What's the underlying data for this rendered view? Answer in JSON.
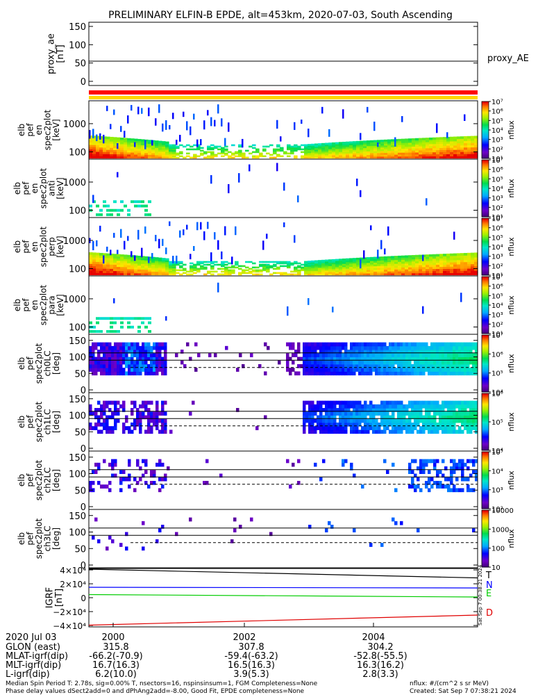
{
  "title": "PRELIMINARY ELFIN-B EPDE, alt=453km, 2020-07-03, South Ascending",
  "colors": {
    "red": "#ff0000",
    "yellow": "#ffd700",
    "blue": "#0000ff",
    "green": "#00cc00",
    "black": "#000000"
  },
  "proxy_panel": {
    "ylabel": "proxy_ae\n[nT]",
    "legend": "proxy_AE",
    "yticks": [
      0,
      50,
      100,
      150
    ],
    "value": 55
  },
  "spectro_panels": [
    {
      "ylabel": "elb\npef\nen\nspec2plot\n[keV]",
      "yticks": [
        "100",
        "1000"
      ],
      "cbar_label": "nflux",
      "cbar_ticks": [
        "10¹",
        "10²",
        "10³",
        "10⁴",
        "10⁵",
        "10⁶",
        "10⁷"
      ],
      "kind": "energy",
      "omni": true
    },
    {
      "ylabel": "elb\npef\nen\nspec2plot\nanti\n[keV]",
      "yticks": [
        "100",
        "1000"
      ],
      "cbar_label": "nflux",
      "cbar_ticks": [
        "10¹",
        "10²",
        "10³",
        "10⁴",
        "10⁵",
        "10⁶",
        "10⁷"
      ],
      "kind": "energy",
      "omni": false
    },
    {
      "ylabel": "elb\npef\nen\nspec2plot\nperp\n[keV]",
      "yticks": [
        "100",
        "1000"
      ],
      "cbar_label": "nflux",
      "cbar_ticks": [
        "10¹",
        "10²",
        "10³",
        "10⁴",
        "10⁵",
        "10⁶",
        "10⁷"
      ],
      "kind": "energy",
      "omni": true
    },
    {
      "ylabel": "elb\npef\nen\nspec2plot\npara\n[keV]",
      "yticks": [
        "100",
        "1000"
      ],
      "cbar_label": "nflux",
      "cbar_ticks": [
        "10¹",
        "10²",
        "10³",
        "10⁴",
        "10⁵",
        "10⁶",
        "10⁷"
      ],
      "kind": "energy",
      "omni": false
    },
    {
      "ylabel": "elb\npef\nspec2plot\nch0LC\n[deg]",
      "yticks": [
        "0",
        "50",
        "100",
        "150"
      ],
      "cbar_label": "nflux",
      "cbar_ticks": [
        "10⁴",
        "10⁵",
        "10⁶",
        "10⁷"
      ],
      "kind": "pitch",
      "level": 3
    },
    {
      "ylabel": "elb\npef\nspec2plot\nch1LC\n[deg]",
      "yticks": [
        "0",
        "50",
        "100",
        "150"
      ],
      "cbar_label": "nflux",
      "cbar_ticks": [
        "10⁴",
        "10⁵",
        "10⁶"
      ],
      "kind": "pitch",
      "level": 2
    },
    {
      "ylabel": "elb\npef\nspec2plot\nch2LC\n[deg]",
      "yticks": [
        "0",
        "50",
        "100",
        "150"
      ],
      "cbar_label": "nflux",
      "cbar_ticks": [
        "10²",
        "10³",
        "10⁴",
        "10⁵"
      ],
      "kind": "pitch",
      "level": 1
    },
    {
      "ylabel": "elb\npef\nspec2plot\nch3LC\n[deg]",
      "yticks": [
        "0",
        "50",
        "100",
        "150"
      ],
      "cbar_label": "nflux",
      "cbar_ticks": [
        "10",
        "100",
        "1000",
        "10000"
      ],
      "kind": "pitch",
      "level": 0
    }
  ],
  "igrf_panel": {
    "ylabel": "IGRF\n[nT]",
    "yticks": [
      "−4×10⁴",
      "−2×10⁴",
      "0",
      "2×10⁴",
      "4×10⁴"
    ],
    "legend": [
      "T",
      "N",
      "E",
      "D"
    ],
    "stamp": "Sat Sep  7 00:38:21 2024"
  },
  "chart_data": {
    "type": "line",
    "title": "PRELIMINARY ELFIN-B EPDE, alt=453km, 2020-07-03, South Ascending",
    "x_ticks": [
      "2000",
      "2002",
      "2004"
    ],
    "proxy_ae": {
      "x": [
        0,
        1
      ],
      "y": [
        55,
        55
      ],
      "ylim": [
        0,
        150
      ]
    },
    "igrf": {
      "ylim": [
        -42000,
        42000
      ],
      "series": [
        {
          "name": "T",
          "y_start": 41000,
          "y_end": 28500
        },
        {
          "name": "N",
          "y_start": 15000,
          "y_end": 14000
        },
        {
          "name": "E",
          "y_start": 4500,
          "y_end": 1000
        },
        {
          "name": "D",
          "y_start": -39500,
          "y_end": -25000
        }
      ]
    }
  },
  "footer": {
    "date": "2020 Jul 03",
    "rows": [
      {
        "label": "GLON (east)",
        "values": [
          "315.8",
          "307.8",
          "304.2"
        ]
      },
      {
        "label": "MLAT-igrf(dip)",
        "values": [
          "-66.2(-70.9)",
          "-59.4(-63.2)",
          "-52.8(-55.5)"
        ]
      },
      {
        "label": "MLT-igrf(dip)",
        "values": [
          "16.7(16.3)",
          "16.5(16.3)",
          "16.3(16.2)"
        ]
      },
      {
        "label": "L-igrf(dip)",
        "values": [
          "6.2(10.0)",
          "3.9(5.3)",
          "2.8(3.3)"
        ]
      }
    ],
    "note1": "Median Spin Period T: 2.78s, sig=0.00% T, nsectors=16, nspinsinsum=1, FGM Completeness=None",
    "note2": "Phase delay values dSect2add=0 and dPhAng2add=-8.00, Good Fit, EPDE completeness=None",
    "units": "nflux: #/(cm^2 s sr MeV)",
    "created": "Created: Sat Sep  7 07:38:21 2024"
  }
}
